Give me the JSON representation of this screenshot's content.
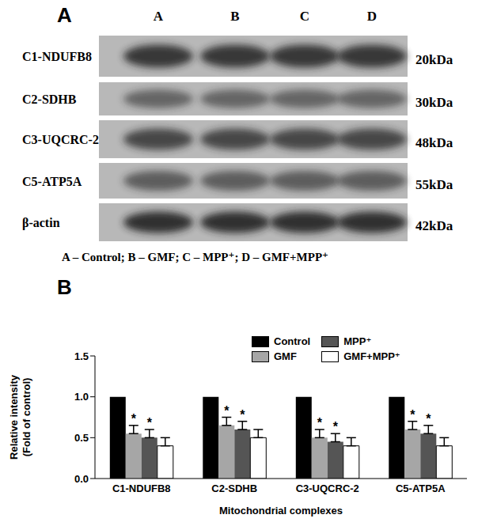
{
  "panels": {
    "a": {
      "label": "A",
      "lanes": [
        "A",
        "B",
        "C",
        "D"
      ],
      "proteins": [
        {
          "name": "C1-NDUFB8",
          "mw": "20kDa"
        },
        {
          "name": "C2-SDHB",
          "mw": "30kDa"
        },
        {
          "name": "C3-UQCRC-2",
          "mw": "48kDa"
        },
        {
          "name": "C5-ATP5A",
          "mw": "55kDa"
        },
        {
          "name": "β-actin",
          "mw": "42kDa"
        }
      ],
      "key": "A – Control; B – GMF; C – MPP⁺;  D – GMF+MPP⁺"
    },
    "b": {
      "label": "B"
    }
  },
  "chart_data": {
    "type": "bar",
    "categories": [
      "C1-NDUFB8",
      "C2-SDHB",
      "C3-UQCRC-2",
      "C5-ATP5A"
    ],
    "xlabel": "Mitochondrial complexes",
    "ylabel": "Relative intensity\n(Fold of control)",
    "ylim": [
      0,
      1.5
    ],
    "yticks": [
      {
        "value": 0,
        "label": "0.0"
      },
      {
        "value": 0.5,
        "label": "0.5"
      },
      {
        "value": 1,
        "label": "1.0"
      },
      {
        "value": 1.5,
        "label": "1.5"
      }
    ],
    "legend": "upper right",
    "series": [
      {
        "name": "Control",
        "color": "#000000",
        "values": [
          1.0,
          1.0,
          1.0,
          1.0
        ]
      },
      {
        "name": "GMF",
        "color": "#a6a6a6",
        "values": [
          0.55,
          0.65,
          0.5,
          0.6
        ],
        "errors": [
          0.1,
          0.1,
          0.1,
          0.1
        ],
        "annotations": [
          "*",
          "*",
          "*",
          "*"
        ]
      },
      {
        "name": "MPP⁺",
        "color": "#555555",
        "values": [
          0.5,
          0.6,
          0.45,
          0.55
        ],
        "errors": [
          0.1,
          0.1,
          0.1,
          0.1
        ],
        "annotations": [
          "*",
          "*",
          "*",
          "*"
        ]
      },
      {
        "name": "GMF+MPP⁺",
        "color": "#ffffff",
        "values": [
          0.4,
          0.5,
          0.4,
          0.4
        ],
        "errors": [
          0.1,
          0.1,
          0.1,
          0.1
        ]
      }
    ]
  }
}
